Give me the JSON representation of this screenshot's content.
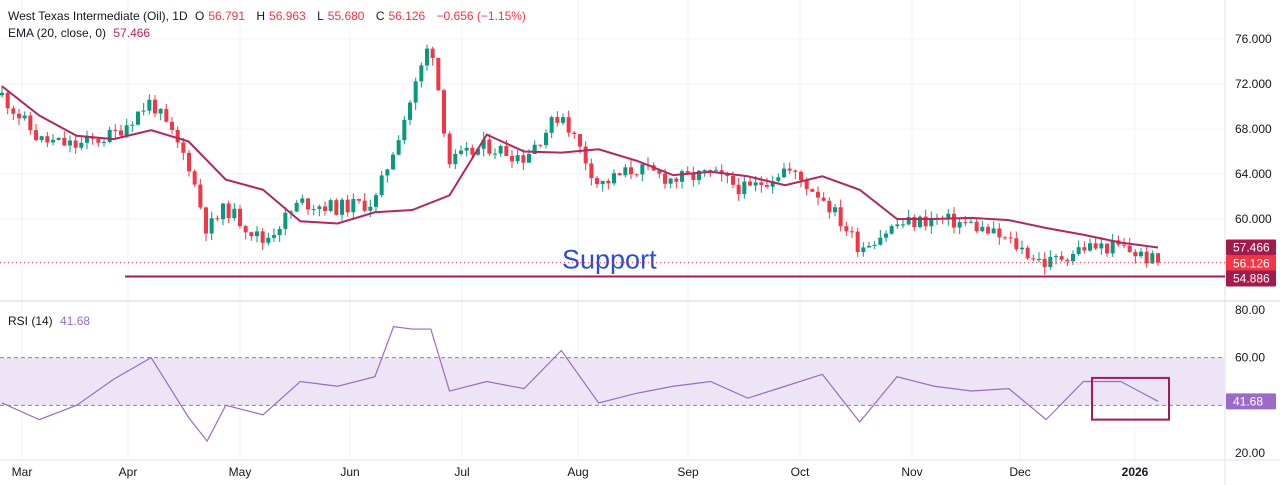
{
  "legend": {
    "symbol": "West Texas Intermediate (Oil), 1D",
    "o_label": "O",
    "o": "56.791",
    "h_label": "H",
    "h": "56.963",
    "l_label": "L",
    "l": "55.680",
    "c_label": "C",
    "c": "56.126",
    "change": "−0.656 (−1.15%)",
    "ema_label": "EMA (20, close, 0)",
    "ema_value": "57.466",
    "rsi_label": "RSI (14)",
    "rsi_value": "41.68"
  },
  "chart_data": [
    {
      "type": "candlestick",
      "title": "West Texas Intermediate (Oil), 1D",
      "ylim": [
        52.5,
        77
      ],
      "y_ticks": [
        60,
        64,
        68,
        72,
        76
      ],
      "y_tick_labels": [
        "60.000",
        "64.000",
        "68.000",
        "72.000",
        "76.000"
      ],
      "x_ticks": [
        "Mar",
        "Apr",
        "May",
        "Jun",
        "Jul",
        "Aug",
        "Sep",
        "Oct",
        "Nov",
        "Dec",
        "2026"
      ],
      "series": [
        {
          "name": "EMA (20, close, 0)",
          "color": "#b5255e",
          "x": [
            0,
            10,
            20,
            30,
            40,
            50,
            60,
            70,
            80,
            90,
            100,
            110,
            120,
            130,
            140,
            150,
            160,
            170,
            180,
            190,
            200,
            210,
            220,
            230,
            240,
            250,
            260,
            270,
            280,
            290,
            300,
            310
          ],
          "y": [
            71.8,
            69.2,
            67.4,
            67.1,
            67.9,
            66.9,
            63.5,
            62.6,
            59.8,
            59.6,
            60.6,
            60.8,
            62.1,
            67.5,
            66.0,
            65.9,
            66.2,
            65.2,
            63.9,
            64.2,
            63.8,
            63.0,
            63.8,
            62.6,
            60.0,
            60.0,
            60.1,
            59.9,
            59.2,
            58.6,
            57.9,
            57.466
          ]
        },
        {
          "name": "close",
          "color": "#131722",
          "x": [
            0,
            10,
            20,
            30,
            40,
            50,
            55,
            60,
            70,
            80,
            90,
            100,
            110,
            115,
            120,
            130,
            140,
            150,
            160,
            170,
            180,
            190,
            200,
            210,
            220,
            230,
            240,
            250,
            260,
            270,
            280,
            290,
            300,
            310
          ],
          "y": [
            71.0,
            67.0,
            66.5,
            67.5,
            70.5,
            65.0,
            59.0,
            61.0,
            58.0,
            61.5,
            61.0,
            61.5,
            71.0,
            76.0,
            65.0,
            66.5,
            65.5,
            69.5,
            63.0,
            64.5,
            63.5,
            64.0,
            62.5,
            64.5,
            62.0,
            57.5,
            59.5,
            60.0,
            59.5,
            58.0,
            56.0,
            57.5,
            57.5,
            56.126
          ]
        }
      ],
      "annotations": {
        "support_label": "Support",
        "support_level": 54.886
      },
      "price_labels": {
        "ema": "57.466",
        "close": "56.126",
        "support": "54.886"
      }
    },
    {
      "type": "line",
      "title": "RSI (14)",
      "ylim": [
        20,
        80
      ],
      "y_ticks": [
        20,
        60,
        80
      ],
      "y_tick_labels": [
        "20.00",
        "60.00",
        "80.00"
      ],
      "bands": [
        40,
        60
      ],
      "series": [
        {
          "name": "RSI (14)",
          "color": "#9c6ac9",
          "x": [
            0,
            10,
            20,
            30,
            40,
            50,
            55,
            60,
            70,
            80,
            90,
            100,
            105,
            110,
            115,
            120,
            130,
            140,
            150,
            160,
            170,
            180,
            190,
            200,
            210,
            220,
            230,
            240,
            250,
            260,
            270,
            280,
            290,
            300,
            310
          ],
          "y": [
            41,
            34,
            40,
            51,
            60,
            35,
            25,
            40,
            36,
            50,
            48,
            52,
            73,
            72,
            72,
            46,
            50,
            47,
            63,
            41,
            45,
            48,
            50,
            43,
            48,
            53,
            33,
            52,
            48,
            46,
            47,
            34,
            50,
            50,
            41.68
          ]
        }
      ],
      "price_labels": {
        "rsi": "41.68"
      }
    }
  ],
  "colors": {
    "up": "#089981",
    "down": "#f23645",
    "ema": "#b5255e",
    "rsi": "#9c6ac9",
    "support": "#a31a5e",
    "support_text": "#2a4fd6",
    "rsi_band": "#ede4f6",
    "axis_text": "#131722"
  }
}
